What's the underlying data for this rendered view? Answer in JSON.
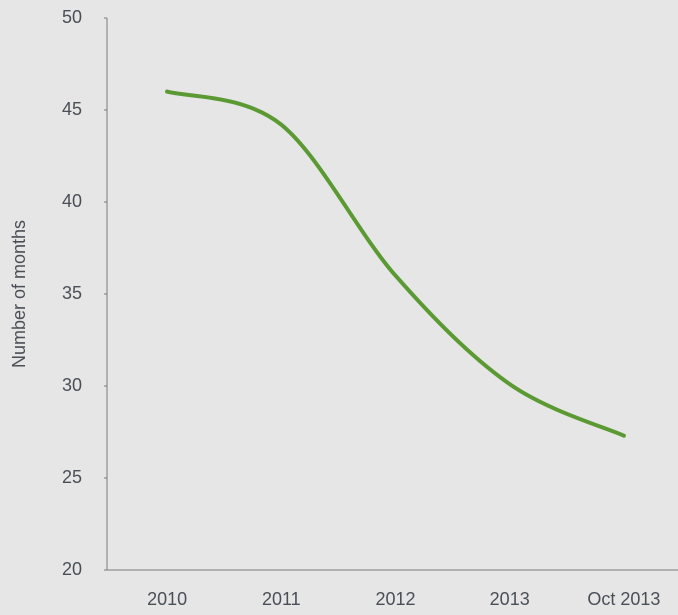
{
  "chart_data": {
    "type": "line",
    "categories": [
      "2010",
      "2011",
      "2012",
      "2013",
      "Oct 2013"
    ],
    "values": [
      46,
      44.2,
      36,
      30.1,
      27.3
    ],
    "color": "#5b9a32",
    "ylabel": "Number of months",
    "ylim": [
      20,
      50
    ],
    "yticks": [
      20,
      25,
      30,
      35,
      40,
      45,
      50
    ],
    "grid": false
  }
}
